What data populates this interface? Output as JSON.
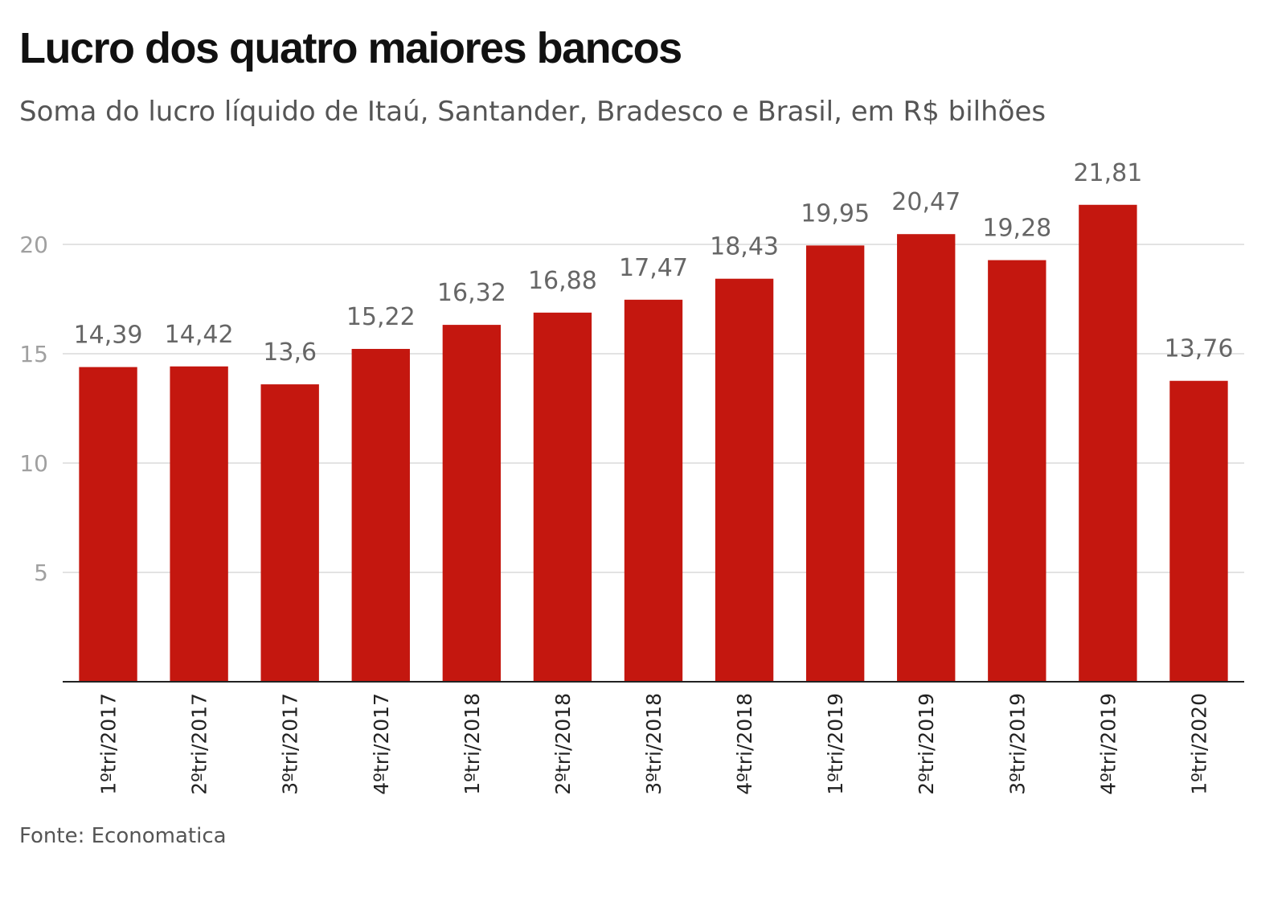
{
  "chart_data": {
    "type": "bar",
    "title": "Lucro dos quatro maiores bancos",
    "subtitle": "Soma do lucro líquido de Itaú, Santander, Bradesco e Brasil, em R$ bilhões",
    "xlabel": "",
    "ylabel": "",
    "categories": [
      "1ºtri/2017",
      "2ºtri/2017",
      "3ºtri/2017",
      "4ºtri/2017",
      "1ºtri/2018",
      "2ºtri/2018",
      "3ºtri/2018",
      "4ºtri/2018",
      "1ºtri/2019",
      "2ºtri/2019",
      "3ºtri/2019",
      "4ºtri/2019",
      "1ºtri/2020"
    ],
    "values": [
      14.39,
      14.42,
      13.6,
      15.22,
      16.32,
      16.88,
      17.47,
      18.43,
      19.95,
      20.47,
      19.28,
      21.81,
      13.76
    ],
    "value_labels": [
      "14,39",
      "14,42",
      "13,6",
      "15,22",
      "16,32",
      "16,88",
      "17,47",
      "18,43",
      "19,95",
      "20,47",
      "19,28",
      "21,81",
      "13,76"
    ],
    "ylim": [
      0,
      22
    ],
    "yticks": [
      5,
      10,
      15,
      20
    ],
    "grid": true,
    "bar_color": "#c4170f",
    "source": "Fonte: Economatica"
  }
}
